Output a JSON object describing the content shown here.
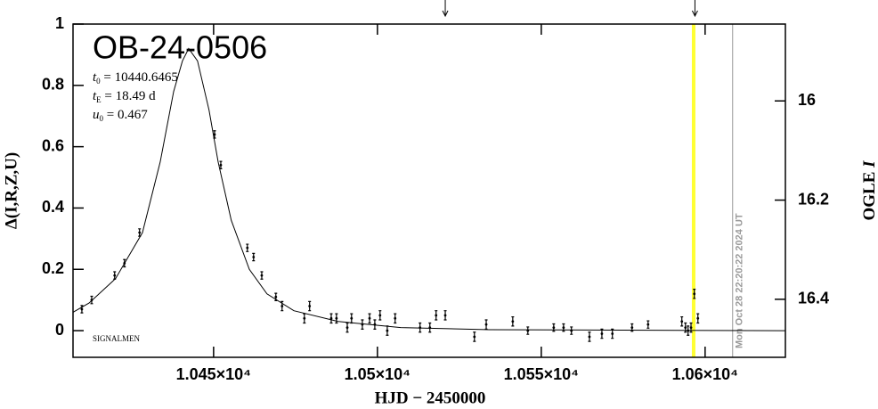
{
  "chart_data": {
    "type": "scatter",
    "title": "OB-24-0506",
    "params": [
      {
        "symbol": "t",
        "sub": "0",
        "text": " = 10440.6465"
      },
      {
        "symbol": "t",
        "sub": "E",
        "text": " = 18.49 d"
      },
      {
        "symbol": "u",
        "sub": "0",
        "text": " = 0.467"
      }
    ],
    "credit": "SIGNALMEN",
    "timestamp": "Mon Oct 28 22:20:22 2024 UT",
    "x_label": "HJD − 2450000",
    "y_label": "Δ(I,R,Z,U)",
    "y2_label": {
      "name": "OGLE ",
      "band": "I"
    },
    "xlim": [
      10407.1,
      10624.5
    ],
    "ylim": [
      -0.087,
      1
    ],
    "y2lim": [
      16.517,
      15.845
    ],
    "xticks": [
      {
        "value": 10450,
        "label": "1.045×10⁴"
      },
      {
        "value": 10500,
        "label": "1.05×10⁴"
      },
      {
        "value": 10550,
        "label": "1.055×10⁴"
      },
      {
        "value": 10600,
        "label": "1.06×10⁴"
      }
    ],
    "yticks": [
      0,
      0.2,
      0.4,
      0.6,
      0.8,
      1
    ],
    "y2ticks": [
      16,
      16.2,
      16.4
    ],
    "highlight_x": 10596.5,
    "highlight_color": "#ffff33",
    "now_x": 10608.4,
    "arrows_x": [
      10520.7,
      10596.9
    ],
    "series": [
      {
        "x": [
          10409.8,
          10412.8,
          10419.8,
          10422.8,
          10427.4,
          10450.3,
          10452.2,
          10460.3,
          10462.2,
          10464.7,
          10469.0,
          10470.9,
          10477.7,
          10479.3,
          10485.9,
          10487.5,
          10490.8,
          10492.1,
          10495.4,
          10497.6,
          10499.2,
          10500.8,
          10503.0,
          10505.4,
          10513.0,
          10516.0,
          10517.9,
          10520.7,
          10529.6,
          10533.2,
          10541.3,
          10545.9,
          10553.8,
          10556.8,
          10559.2,
          10564.7,
          10568.5,
          10571.7,
          10577.7,
          10582.6,
          10592.9,
          10594.0,
          10594.8,
          10595.7,
          10596.7,
          10597.8
        ],
        "values": [
          0.07,
          0.1,
          0.18,
          0.22,
          0.32,
          0.64,
          0.54,
          0.27,
          0.24,
          0.18,
          0.11,
          0.08,
          0.04,
          0.08,
          0.04,
          0.04,
          0.01,
          0.04,
          0.02,
          0.04,
          0.02,
          0.05,
          0.0,
          0.04,
          0.01,
          0.01,
          0.05,
          0.05,
          -0.02,
          0.02,
          0.03,
          0.0,
          0.01,
          0.01,
          0.0,
          -0.02,
          -0.01,
          -0.01,
          0.01,
          0.02,
          0.03,
          0.01,
          0.0,
          0.01,
          0.12,
          0.04
        ],
        "errors": [
          0.012,
          0.012,
          0.012,
          0.012,
          0.012,
          0.012,
          0.012,
          0.012,
          0.012,
          0.012,
          0.012,
          0.015,
          0.015,
          0.015,
          0.015,
          0.015,
          0.015,
          0.015,
          0.015,
          0.015,
          0.015,
          0.015,
          0.015,
          0.015,
          0.015,
          0.015,
          0.015,
          0.015,
          0.015,
          0.015,
          0.015,
          0.012,
          0.012,
          0.012,
          0.012,
          0.015,
          0.015,
          0.015,
          0.012,
          0.012,
          0.015,
          0.015,
          0.015,
          0.015,
          0.015,
          0.015
        ],
        "color": "#000000"
      }
    ],
    "model": {
      "x": [
        10407.1,
        10412.0,
        10420.1,
        10428.3,
        10433.7,
        10437.8,
        10440.5,
        10442.4,
        10445.1,
        10448.6,
        10451.4,
        10455.4,
        10460.9,
        10466.3,
        10474.5,
        10488.0,
        10507.1,
        10534.2,
        10624.5
      ],
      "values": [
        0.06,
        0.09,
        0.17,
        0.32,
        0.55,
        0.78,
        0.88,
        0.92,
        0.88,
        0.72,
        0.55,
        0.36,
        0.2,
        0.12,
        0.065,
        0.03,
        0.01,
        0.003,
        0
      ],
      "color": "#000000"
    }
  }
}
